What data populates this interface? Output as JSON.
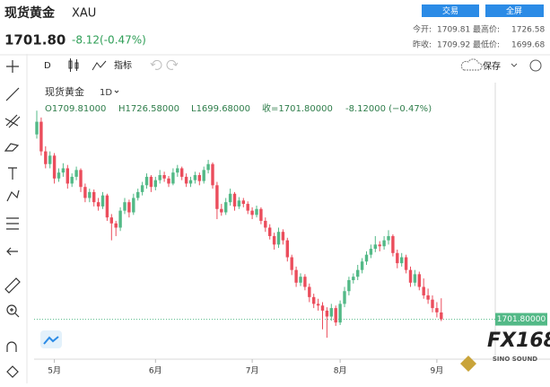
{
  "header": {
    "name": "现货黄金",
    "symbol": "XAU",
    "price": "1701.80",
    "change": "-8.12(-0.47%)",
    "buttons": [
      "交易",
      "全屏"
    ],
    "stats": [
      [
        "今开:",
        "1709.81",
        "最高价:",
        "1726.58"
      ],
      [
        "昨收:",
        "1709.92",
        "最低价:",
        "1699.68"
      ]
    ]
  },
  "toolbar": {
    "interval": "D",
    "indicators": "指标",
    "save": "保存"
  },
  "legend": {
    "name": "现货黄金",
    "interval": "1D",
    "open": "O1709.81000",
    "high": "H1726.58000",
    "low": "L1699.68000",
    "close": "收=1701.80000",
    "change": "-8.12000 (−0.47%)"
  },
  "chart_data": {
    "type": "candlestick",
    "up_color": "#53b987",
    "down_color": "#eb4d5c",
    "ylim": [
      1660,
      1978
    ],
    "price_line": {
      "value": 1701.8,
      "label": "1701.80000",
      "color": "#53b987"
    },
    "xticks": [
      {
        "value": 4,
        "label": "5月"
      },
      {
        "value": 27,
        "label": "6月"
      },
      {
        "value": 49,
        "label": "7月"
      },
      {
        "value": 69,
        "label": "8月"
      },
      {
        "value": 91,
        "label": "9月"
      }
    ],
    "candles": [
      [
        1920,
        1948,
        1915,
        1935
      ],
      [
        1935,
        1940,
        1895,
        1900
      ],
      [
        1900,
        1906,
        1880,
        1885
      ],
      [
        1885,
        1900,
        1880,
        1895
      ],
      [
        1895,
        1898,
        1862,
        1868
      ],
      [
        1868,
        1880,
        1864,
        1875
      ],
      [
        1875,
        1886,
        1870,
        1880
      ],
      [
        1880,
        1884,
        1856,
        1862
      ],
      [
        1862,
        1874,
        1858,
        1870
      ],
      [
        1870,
        1882,
        1866,
        1878
      ],
      [
        1878,
        1880,
        1852,
        1858
      ],
      [
        1858,
        1862,
        1840,
        1845
      ],
      [
        1845,
        1856,
        1840,
        1852
      ],
      [
        1852,
        1855,
        1835,
        1840
      ],
      [
        1840,
        1845,
        1830,
        1835
      ],
      [
        1835,
        1852,
        1832,
        1848
      ],
      [
        1848,
        1850,
        1818,
        1822
      ],
      [
        1822,
        1826,
        1795,
        1815
      ],
      [
        1815,
        1818,
        1800,
        1810
      ],
      [
        1810,
        1834,
        1806,
        1830
      ],
      [
        1830,
        1845,
        1826,
        1840
      ],
      [
        1840,
        1843,
        1822,
        1828
      ],
      [
        1828,
        1850,
        1825,
        1845
      ],
      [
        1845,
        1856,
        1842,
        1852
      ],
      [
        1852,
        1864,
        1848,
        1860
      ],
      [
        1860,
        1874,
        1856,
        1870
      ],
      [
        1870,
        1872,
        1852,
        1858
      ],
      [
        1858,
        1870,
        1854,
        1866
      ],
      [
        1866,
        1878,
        1862,
        1872
      ],
      [
        1872,
        1876,
        1864,
        1868
      ],
      [
        1868,
        1871,
        1858,
        1862
      ],
      [
        1862,
        1880,
        1860,
        1875
      ],
      [
        1875,
        1884,
        1870,
        1880
      ],
      [
        1880,
        1882,
        1866,
        1870
      ],
      [
        1870,
        1874,
        1858,
        1862
      ],
      [
        1862,
        1870,
        1858,
        1866
      ],
      [
        1866,
        1876,
        1862,
        1872
      ],
      [
        1872,
        1875,
        1860,
        1865
      ],
      [
        1865,
        1882,
        1862,
        1878
      ],
      [
        1878,
        1890,
        1874,
        1885
      ],
      [
        1885,
        1887,
        1856,
        1860
      ],
      [
        1860,
        1864,
        1820,
        1832
      ],
      [
        1832,
        1838,
        1824,
        1828
      ],
      [
        1828,
        1845,
        1825,
        1840
      ],
      [
        1840,
        1856,
        1836,
        1850
      ],
      [
        1850,
        1852,
        1830,
        1835
      ],
      [
        1835,
        1846,
        1832,
        1842
      ],
      [
        1842,
        1845,
        1834,
        1838
      ],
      [
        1838,
        1841,
        1826,
        1830
      ],
      [
        1830,
        1834,
        1820,
        1825
      ],
      [
        1825,
        1836,
        1822,
        1832
      ],
      [
        1832,
        1834,
        1814,
        1818
      ],
      [
        1818,
        1822,
        1805,
        1810
      ],
      [
        1810,
        1814,
        1796,
        1800
      ],
      [
        1800,
        1804,
        1784,
        1790
      ],
      [
        1790,
        1810,
        1786,
        1805
      ],
      [
        1805,
        1808,
        1790,
        1795
      ],
      [
        1795,
        1798,
        1770,
        1775
      ],
      [
        1775,
        1778,
        1754,
        1760
      ],
      [
        1760,
        1764,
        1740,
        1745
      ],
      [
        1745,
        1756,
        1741,
        1752
      ],
      [
        1752,
        1755,
        1736,
        1740
      ],
      [
        1740,
        1744,
        1722,
        1728
      ],
      [
        1728,
        1732,
        1715,
        1720
      ],
      [
        1720,
        1726,
        1712,
        1718
      ],
      [
        1718,
        1722,
        1690,
        1712
      ],
      [
        1712,
        1716,
        1680,
        1705
      ],
      [
        1705,
        1720,
        1700,
        1715
      ],
      [
        1715,
        1718,
        1694,
        1698
      ],
      [
        1698,
        1724,
        1695,
        1720
      ],
      [
        1720,
        1740,
        1716,
        1735
      ],
      [
        1735,
        1752,
        1730,
        1748
      ],
      [
        1748,
        1756,
        1744,
        1752
      ],
      [
        1752,
        1766,
        1748,
        1760
      ],
      [
        1760,
        1774,
        1756,
        1770
      ],
      [
        1770,
        1782,
        1766,
        1778
      ],
      [
        1778,
        1790,
        1774,
        1785
      ],
      [
        1785,
        1800,
        1781,
        1790
      ],
      [
        1790,
        1794,
        1782,
        1788
      ],
      [
        1788,
        1800,
        1784,
        1795
      ],
      [
        1795,
        1807,
        1790,
        1800
      ],
      [
        1800,
        1802,
        1776,
        1780
      ],
      [
        1780,
        1784,
        1762,
        1768
      ],
      [
        1768,
        1780,
        1764,
        1775
      ],
      [
        1775,
        1778,
        1756,
        1760
      ],
      [
        1760,
        1764,
        1740,
        1745
      ],
      [
        1745,
        1760,
        1741,
        1755
      ],
      [
        1755,
        1758,
        1736,
        1740
      ],
      [
        1740,
        1750,
        1726,
        1730
      ],
      [
        1730,
        1738,
        1720,
        1725
      ],
      [
        1725,
        1730,
        1710,
        1715
      ],
      [
        1715,
        1722,
        1704,
        1710
      ],
      [
        1709.81,
        1726.58,
        1699.68,
        1701.8
      ]
    ]
  },
  "watermark": {
    "brand": "FX168",
    "sub": "SINO SOUND"
  }
}
